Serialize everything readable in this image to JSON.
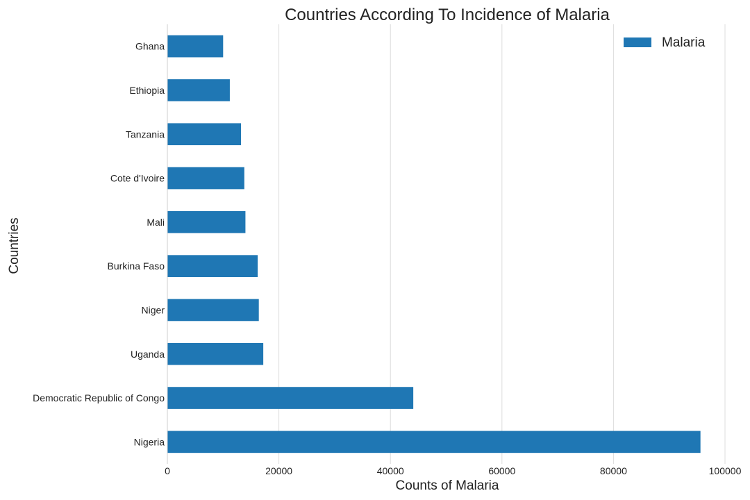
{
  "chart_data": {
    "type": "bar",
    "orientation": "horizontal",
    "title": "Countries According To Incidence of Malaria",
    "xlabel": "Counts of Malaria",
    "ylabel": "Countries",
    "categories": [
      "Nigeria",
      "Democratic Republic of Congo",
      "Uganda",
      "Niger",
      "Burkina Faso",
      "Mali",
      "Cote d'Ivoire",
      "Tanzania",
      "Ethiopia",
      "Ghana"
    ],
    "series": [
      {
        "name": "Malaria",
        "color": "#1f77b4",
        "values": [
          95600,
          44100,
          17200,
          16400,
          16200,
          14000,
          13800,
          13200,
          11200,
          10000
        ]
      }
    ],
    "xlim": [
      0,
      100000
    ],
    "xticks": [
      0,
      20000,
      40000,
      60000,
      80000,
      100000
    ],
    "xtick_labels": [
      "0",
      "20000",
      "40000",
      "60000",
      "80000",
      "100000"
    ],
    "grid": "vertical",
    "legend_position": "top-right"
  }
}
